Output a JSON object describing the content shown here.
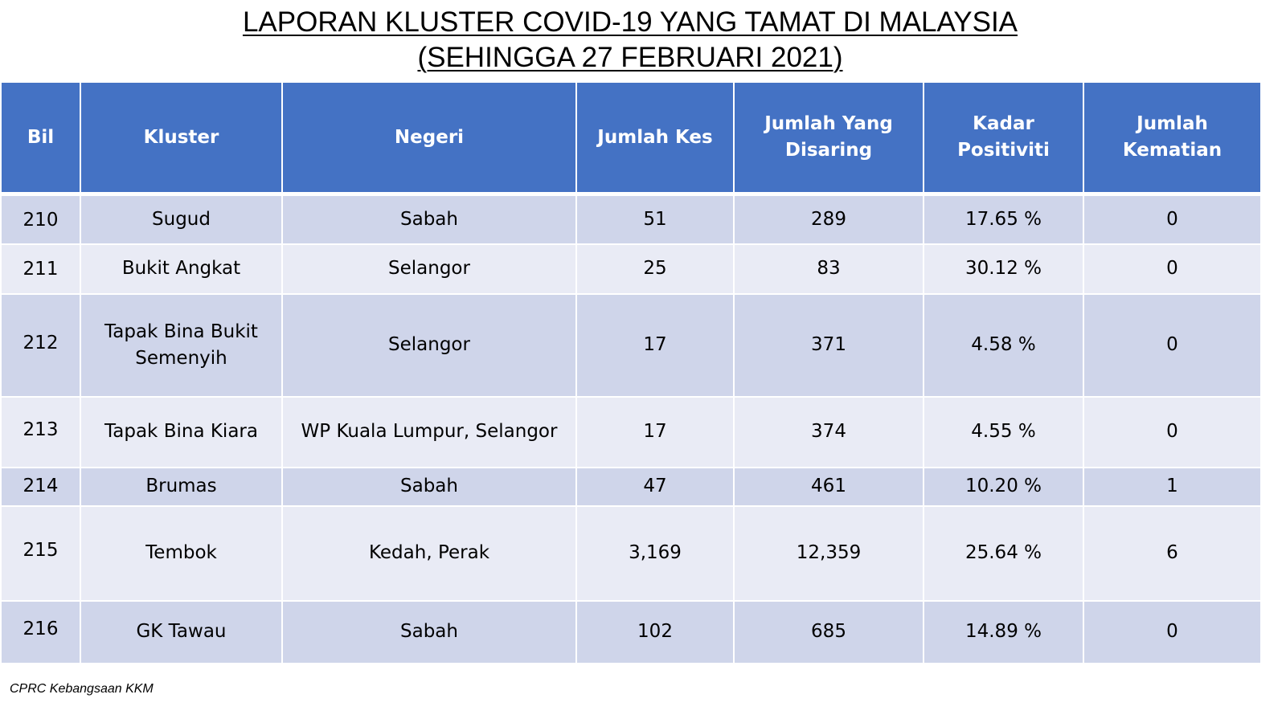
{
  "title": {
    "line1": "LAPORAN KLUSTER COVID-19 YANG TAMAT DI MALAYSIA",
    "line2": "(SEHINGGA  27 FEBRUARI 2021)"
  },
  "table": {
    "headers": {
      "bil": "Bil",
      "kluster": "Kluster",
      "negeri": "Negeri",
      "jumlah_kes": "Jumlah Kes",
      "jumlah_disaring": "Jumlah Yang Disaring",
      "kadar_positiviti": "Kadar Positiviti",
      "jumlah_kematian": "Jumlah Kematian"
    },
    "rows": [
      {
        "bil": "210",
        "kluster": "Sugud",
        "negeri": "Sabah",
        "kes": "51",
        "disaring": "289",
        "positiviti": "17.65 %",
        "kematian": "0"
      },
      {
        "bil": "211",
        "kluster": "Bukit Angkat",
        "negeri": "Selangor",
        "kes": "25",
        "disaring": "83",
        "positiviti": "30.12 %",
        "kematian": "0"
      },
      {
        "bil": "212",
        "kluster": "Tapak Bina Bukit Semenyih",
        "negeri": "Selangor",
        "kes": "17",
        "disaring": "371",
        "positiviti": "4.58 %",
        "kematian": "0"
      },
      {
        "bil": "213",
        "kluster": "Tapak Bina Kiara",
        "negeri": "WP Kuala Lumpur, Selangor",
        "kes": "17",
        "disaring": "374",
        "positiviti": "4.55 %",
        "kematian": "0"
      },
      {
        "bil": "214",
        "kluster": "Brumas",
        "negeri": "Sabah",
        "kes": "47",
        "disaring": "461",
        "positiviti": "10.20 %",
        "kematian": "1"
      },
      {
        "bil": "215",
        "kluster": "Tembok",
        "negeri": "Kedah, Perak",
        "kes": "3,169",
        "disaring": "12,359",
        "positiviti": "25.64 %",
        "kematian": "6"
      },
      {
        "bil": "216",
        "kluster": "GK Tawau",
        "negeri": "Sabah",
        "kes": "102",
        "disaring": "685",
        "positiviti": "14.89 %",
        "kematian": "0"
      }
    ]
  },
  "footer": {
    "source": "CPRC Kebangsaan KKM"
  },
  "colors": {
    "header_bg": "#4472c4",
    "row_odd_bg": "#cfd5ea",
    "row_even_bg": "#e9ebf5"
  }
}
